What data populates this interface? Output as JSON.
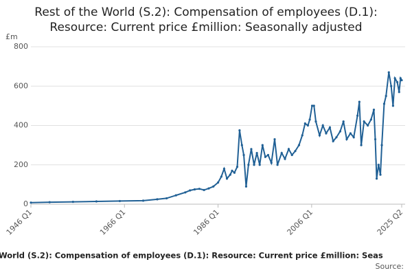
{
  "chart_data": {
    "type": "line",
    "title": [
      "Rest of the World (S.2): Compensation of employees (D.1):",
      "Resource: Current price £million: Seasonally adjusted"
    ],
    "y_label": "£m",
    "footer": "World (S.2): Compensation of employees (D.1): Resource: Current price £million: Seas",
    "source": "Source:",
    "xlim": [
      1946,
      2025.25
    ],
    "xticks": [
      {
        "value": 1946,
        "label": "1946 Q1"
      },
      {
        "value": 1966,
        "label": "1966 Q1"
      },
      {
        "value": 1986,
        "label": "1986 Q1"
      },
      {
        "value": 2006,
        "label": "2006 Q1"
      },
      {
        "value": 2025.25,
        "label": "2025 Q2"
      }
    ],
    "ylim": [
      0,
      800
    ],
    "yticks": [
      0,
      200,
      400,
      600,
      800
    ],
    "grid": true,
    "series": [
      {
        "name": "Compensation of employees",
        "color": "#206095",
        "x": [
          1946,
          1950,
          1955,
          1960,
          1965,
          1970,
          1973,
          1975,
          1977,
          1979,
          1980,
          1981,
          1982,
          1983,
          1984,
          1985,
          1986.0,
          1986.7,
          1987.3,
          1987.9,
          1988.6,
          1989.0,
          1989.5,
          1990.1,
          1990.6,
          1991.1,
          1991.5,
          1992.0,
          1992.5,
          1993.1,
          1993.7,
          1994.3,
          1994.9,
          1995.5,
          1996.1,
          1996.7,
          1997.4,
          1998.1,
          1998.7,
          1999.6,
          2000.3,
          2001.1,
          2001.8,
          2002.5,
          2003.3,
          2004.0,
          2004.6,
          2005.2,
          2005.6,
          2006.1,
          2006.5,
          2006.9,
          2007.7,
          2008.4,
          2009.1,
          2009.9,
          2010.6,
          2011.3,
          2012.1,
          2012.8,
          2013.5,
          2014.3,
          2015.0,
          2015.8,
          2016.2,
          2016.6,
          2017.2,
          2018.0,
          2018.7,
          2019.3,
          2019.6,
          2019.9,
          2020.3,
          2020.7,
          2021.0,
          2021.5,
          2021.9,
          2022.5,
          2023.0,
          2023.4,
          2023.8,
          2024.3,
          2024.7,
          2025.0,
          2025.25
        ],
        "values": [
          8,
          10,
          12,
          14,
          16,
          18,
          25,
          30,
          45,
          60,
          70,
          75,
          78,
          72,
          80,
          90,
          110,
          140,
          180,
          130,
          150,
          170,
          160,
          190,
          375,
          300,
          250,
          90,
          200,
          280,
          200,
          260,
          200,
          300,
          240,
          250,
          210,
          330,
          200,
          260,
          230,
          280,
          250,
          270,
          300,
          350,
          410,
          400,
          430,
          500,
          500,
          420,
          350,
          400,
          360,
          390,
          320,
          340,
          370,
          420,
          330,
          360,
          340,
          450,
          520,
          300,
          420,
          400,
          430,
          480,
          330,
          130,
          200,
          150,
          300,
          510,
          550,
          670,
          600,
          500,
          640,
          620,
          570,
          640,
          630
        ]
      }
    ]
  }
}
